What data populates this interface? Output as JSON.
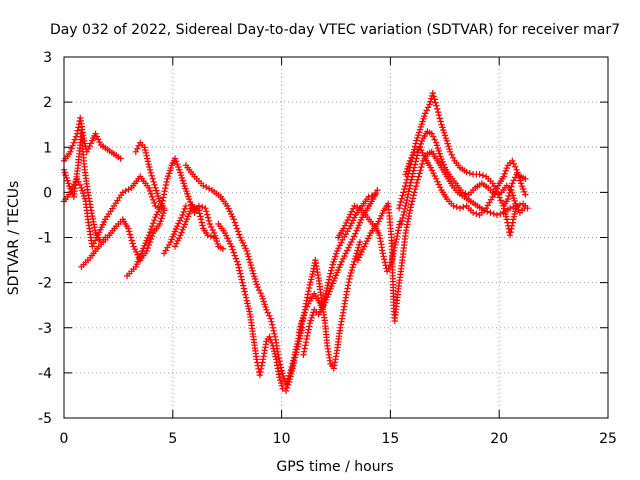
{
  "chart_data": {
    "type": "scatter",
    "title": "Day 032 of 2022, Sidereal Day-to-day VTEC variation (SDTVAR) for receiver mar7",
    "xlabel": "GPS time / hours",
    "ylabel": "SDTVAR / TECUs",
    "xlim": [
      0,
      25
    ],
    "ylim": [
      -5,
      3
    ],
    "xticks": [
      0,
      5,
      10,
      15,
      20,
      25
    ],
    "yticks": [
      -5,
      -4,
      -3,
      -2,
      -1,
      0,
      1,
      2,
      3
    ],
    "xtick_labels": [
      "0",
      "5",
      "10",
      "15",
      "20",
      "25"
    ],
    "ytick_labels": [
      "-5",
      "-4",
      "-3",
      "-2",
      "-1",
      "0",
      "1",
      "2",
      "3"
    ],
    "grid": true,
    "marker": "+",
    "color": "#ff0000",
    "series_traces": [
      [
        [
          0.0,
          0.7
        ],
        [
          0.3,
          0.9
        ],
        [
          0.6,
          1.3
        ],
        [
          0.75,
          1.65
        ],
        [
          0.9,
          1.2
        ],
        [
          1.05,
          0.9
        ],
        [
          1.3,
          1.15
        ],
        [
          1.45,
          1.3
        ],
        [
          1.7,
          1.05
        ],
        [
          2.0,
          0.95
        ],
        [
          2.3,
          0.85
        ],
        [
          2.6,
          0.75
        ]
      ],
      [
        [
          0.0,
          0.5
        ],
        [
          0.2,
          0.2
        ],
        [
          0.45,
          -0.1
        ],
        [
          0.65,
          0.6
        ],
        [
          0.8,
          1.3
        ],
        [
          0.95,
          0.5
        ],
        [
          1.1,
          0.0
        ],
        [
          1.25,
          -0.4
        ],
        [
          1.45,
          -0.9
        ],
        [
          1.7,
          -1.1
        ],
        [
          1.9,
          -1.0
        ]
      ],
      [
        [
          0.0,
          -0.2
        ],
        [
          0.3,
          0.0
        ],
        [
          0.6,
          0.3
        ],
        [
          0.8,
          0.1
        ],
        [
          1.0,
          -0.2
        ],
        [
          1.1,
          -0.6
        ],
        [
          1.3,
          -1.2
        ],
        [
          1.5,
          -1.0
        ],
        [
          1.9,
          -0.6
        ],
        [
          2.3,
          -0.3
        ],
        [
          2.7,
          0.0
        ],
        [
          3.1,
          0.1
        ],
        [
          3.5,
          0.35
        ],
        [
          3.9,
          0.1
        ],
        [
          4.2,
          -0.3
        ],
        [
          4.6,
          -0.4
        ]
      ],
      [
        [
          0.8,
          -1.65
        ],
        [
          1.2,
          -1.45
        ],
        [
          1.6,
          -1.2
        ],
        [
          2.0,
          -1.0
        ],
        [
          2.4,
          -0.75
        ],
        [
          2.7,
          -0.6
        ],
        [
          2.95,
          -0.8
        ],
        [
          3.2,
          -1.2
        ],
        [
          3.5,
          -1.5
        ],
        [
          3.8,
          -1.3
        ],
        [
          4.1,
          -0.9
        ],
        [
          4.4,
          -0.7
        ],
        [
          4.6,
          -0.4
        ]
      ],
      [
        [
          2.9,
          -1.85
        ],
        [
          3.3,
          -1.65
        ],
        [
          3.6,
          -1.3
        ],
        [
          3.9,
          -0.95
        ],
        [
          4.2,
          -0.55
        ],
        [
          4.5,
          -0.25
        ],
        [
          4.75,
          0.3
        ],
        [
          4.95,
          0.6
        ],
        [
          5.1,
          0.75
        ],
        [
          5.3,
          0.5
        ],
        [
          5.5,
          0.2
        ],
        [
          5.75,
          -0.15
        ],
        [
          6.0,
          -0.45
        ],
        [
          6.2,
          -0.3
        ],
        [
          6.5,
          -0.35
        ],
        [
          6.7,
          -0.7
        ],
        [
          6.9,
          -0.9
        ],
        [
          7.1,
          -1.2
        ],
        [
          7.3,
          -1.25
        ]
      ],
      [
        [
          3.3,
          0.9
        ],
        [
          3.5,
          1.1
        ],
        [
          3.7,
          1.0
        ],
        [
          3.95,
          0.5
        ],
        [
          4.2,
          0.1
        ],
        [
          4.4,
          -0.2
        ],
        [
          4.6,
          -0.35
        ]
      ],
      [
        [
          4.6,
          -1.35
        ],
        [
          4.9,
          -1.1
        ],
        [
          5.2,
          -0.75
        ],
        [
          5.45,
          -0.5
        ],
        [
          5.6,
          -0.3
        ]
      ],
      [
        [
          5.1,
          -1.2
        ],
        [
          5.35,
          -0.95
        ],
        [
          5.6,
          -0.65
        ],
        [
          5.9,
          -0.3
        ],
        [
          6.2,
          -0.4
        ],
        [
          6.4,
          -0.8
        ],
        [
          6.6,
          -0.95
        ],
        [
          6.9,
          -1.0
        ]
      ],
      [
        [
          5.6,
          0.6
        ],
        [
          6.0,
          0.35
        ],
        [
          6.4,
          0.15
        ],
        [
          6.8,
          0.05
        ],
        [
          7.2,
          -0.1
        ],
        [
          7.5,
          -0.3
        ],
        [
          7.8,
          -0.6
        ],
        [
          8.1,
          -1.0
        ],
        [
          8.4,
          -1.3
        ],
        [
          8.7,
          -1.8
        ],
        [
          8.9,
          -2.1
        ],
        [
          9.1,
          -2.3
        ],
        [
          9.3,
          -2.6
        ],
        [
          9.5,
          -2.8
        ],
        [
          9.7,
          -3.2
        ],
        [
          9.85,
          -3.6
        ],
        [
          10.0,
          -3.95
        ],
        [
          10.2,
          -4.25
        ],
        [
          10.4,
          -4.0
        ],
        [
          10.6,
          -3.6
        ],
        [
          10.75,
          -3.3
        ],
        [
          10.9,
          -2.9
        ],
        [
          11.1,
          -2.6
        ],
        [
          11.3,
          -2.4
        ],
        [
          11.5,
          -2.25
        ],
        [
          11.7,
          -2.4
        ],
        [
          11.85,
          -2.55
        ],
        [
          12.0,
          -2.3
        ],
        [
          12.15,
          -2.0
        ],
        [
          12.35,
          -1.6
        ],
        [
          12.55,
          -1.3
        ],
        [
          12.8,
          -1.05
        ],
        [
          13.1,
          -0.8
        ],
        [
          13.4,
          -0.5
        ],
        [
          13.7,
          -0.3
        ],
        [
          14.0,
          -0.1
        ],
        [
          14.3,
          -0.05
        ]
      ],
      [
        [
          7.1,
          -0.7
        ],
        [
          7.4,
          -0.9
        ],
        [
          7.7,
          -1.2
        ],
        [
          8.0,
          -1.6
        ],
        [
          8.2,
          -2.0
        ],
        [
          8.4,
          -2.4
        ],
        [
          8.55,
          -2.7
        ],
        [
          8.7,
          -3.2
        ],
        [
          8.85,
          -3.7
        ],
        [
          9.0,
          -4.05
        ],
        [
          9.15,
          -3.7
        ],
        [
          9.3,
          -3.3
        ],
        [
          9.45,
          -3.2
        ],
        [
          9.6,
          -3.4
        ],
        [
          9.75,
          -3.7
        ],
        [
          9.9,
          -4.1
        ],
        [
          10.05,
          -4.35
        ],
        [
          10.2,
          -4.4
        ],
        [
          10.35,
          -4.2
        ],
        [
          10.5,
          -3.9
        ],
        [
          10.65,
          -3.6
        ],
        [
          10.8,
          -3.3
        ],
        [
          10.95,
          -3.0
        ]
      ],
      [
        [
          10.8,
          -3.1
        ],
        [
          11.0,
          -2.8
        ],
        [
          11.15,
          -2.4
        ],
        [
          11.3,
          -2.05
        ],
        [
          11.45,
          -1.75
        ],
        [
          11.55,
          -1.5
        ],
        [
          11.7,
          -1.9
        ],
        [
          11.85,
          -2.4
        ],
        [
          12.0,
          -2.9
        ],
        [
          12.1,
          -3.4
        ],
        [
          12.25,
          -3.8
        ],
        [
          12.4,
          -3.9
        ],
        [
          12.55,
          -3.5
        ],
        [
          12.7,
          -3.0
        ],
        [
          12.85,
          -2.6
        ],
        [
          13.0,
          -2.2
        ],
        [
          13.15,
          -1.85
        ],
        [
          13.3,
          -1.6
        ],
        [
          13.45,
          -1.35
        ],
        [
          13.6,
          -1.1
        ]
      ],
      [
        [
          11.0,
          -3.6
        ],
        [
          11.15,
          -3.25
        ],
        [
          11.3,
          -2.9
        ],
        [
          11.5,
          -2.6
        ],
        [
          11.7,
          -2.7
        ],
        [
          11.95,
          -2.5
        ],
        [
          12.2,
          -2.2
        ],
        [
          12.45,
          -1.9
        ],
        [
          12.7,
          -1.6
        ],
        [
          12.95,
          -1.35
        ],
        [
          13.2,
          -1.1
        ],
        [
          13.45,
          -0.85
        ],
        [
          13.7,
          -0.55
        ],
        [
          13.95,
          -0.35
        ],
        [
          14.2,
          -0.15
        ],
        [
          14.4,
          0.05
        ]
      ],
      [
        [
          12.6,
          -1.0
        ],
        [
          12.85,
          -0.8
        ],
        [
          13.1,
          -0.55
        ],
        [
          13.35,
          -0.3
        ],
        [
          13.6,
          -0.35
        ],
        [
          13.85,
          -0.5
        ],
        [
          14.1,
          -0.65
        ],
        [
          14.35,
          -0.8
        ],
        [
          14.5,
          -0.95
        ],
        [
          14.65,
          -1.35
        ],
        [
          14.85,
          -1.75
        ],
        [
          15.05,
          -1.55
        ],
        [
          15.25,
          -1.1
        ],
        [
          15.45,
          -0.65
        ]
      ],
      [
        [
          13.5,
          -1.5
        ],
        [
          13.8,
          -1.2
        ],
        [
          14.1,
          -0.9
        ],
        [
          14.4,
          -0.7
        ],
        [
          14.7,
          -0.4
        ],
        [
          14.9,
          -0.25
        ],
        [
          15.05,
          -1.0
        ],
        [
          15.15,
          -2.5
        ],
        [
          15.2,
          -2.85
        ],
        [
          15.35,
          -2.2
        ],
        [
          15.55,
          -1.5
        ],
        [
          15.7,
          -0.9
        ],
        [
          15.9,
          -0.4
        ],
        [
          16.1,
          0.0
        ],
        [
          16.3,
          0.35
        ],
        [
          16.5,
          0.7
        ],
        [
          16.7,
          0.85
        ],
        [
          16.9,
          0.9
        ],
        [
          17.1,
          0.75
        ],
        [
          17.35,
          0.55
        ],
        [
          17.6,
          0.35
        ],
        [
          17.85,
          0.15
        ],
        [
          18.1,
          0.0
        ],
        [
          18.4,
          -0.1
        ],
        [
          18.7,
          -0.2
        ],
        [
          19.0,
          -0.3
        ],
        [
          19.3,
          -0.4
        ],
        [
          19.6,
          -0.45
        ],
        [
          19.9,
          -0.5
        ],
        [
          20.2,
          -0.45
        ],
        [
          20.5,
          -0.35
        ],
        [
          20.8,
          -0.3
        ],
        [
          21.1,
          -0.25
        ],
        [
          21.3,
          -0.35
        ]
      ],
      [
        [
          15.4,
          -0.35
        ],
        [
          15.6,
          0.0
        ],
        [
          15.8,
          0.35
        ],
        [
          16.0,
          0.75
        ],
        [
          16.2,
          1.15
        ],
        [
          16.4,
          1.45
        ],
        [
          16.6,
          1.75
        ],
        [
          16.8,
          1.95
        ],
        [
          16.95,
          2.2
        ],
        [
          17.15,
          1.85
        ],
        [
          17.35,
          1.5
        ],
        [
          17.55,
          1.2
        ],
        [
          17.75,
          0.9
        ],
        [
          17.95,
          0.7
        ],
        [
          18.2,
          0.55
        ],
        [
          18.5,
          0.45
        ],
        [
          18.8,
          0.4
        ],
        [
          19.1,
          0.4
        ],
        [
          19.4,
          0.35
        ],
        [
          19.7,
          0.2
        ],
        [
          19.95,
          -0.05
        ],
        [
          20.2,
          -0.3
        ],
        [
          20.4,
          -0.15
        ],
        [
          20.6,
          0.2
        ],
        [
          20.8,
          0.4
        ],
        [
          21.0,
          0.35
        ],
        [
          21.2,
          0.3
        ]
      ],
      [
        [
          15.5,
          -0.7
        ],
        [
          15.7,
          -0.3
        ],
        [
          15.9,
          0.15
        ],
        [
          16.1,
          0.55
        ],
        [
          16.3,
          0.95
        ],
        [
          16.5,
          1.2
        ],
        [
          16.7,
          1.35
        ],
        [
          16.9,
          1.3
        ],
        [
          17.1,
          1.1
        ],
        [
          17.3,
          0.8
        ],
        [
          17.5,
          0.55
        ],
        [
          17.75,
          0.35
        ],
        [
          18.0,
          0.2
        ],
        [
          18.3,
          0.0
        ],
        [
          18.6,
          -0.05
        ],
        [
          18.9,
          0.1
        ],
        [
          19.2,
          0.2
        ],
        [
          19.5,
          0.1
        ],
        [
          19.8,
          -0.05
        ],
        [
          20.1,
          0.0
        ],
        [
          20.35,
          0.15
        ],
        [
          20.55,
          0.05
        ],
        [
          20.75,
          -0.25
        ],
        [
          20.95,
          -0.45
        ],
        [
          21.15,
          -0.35
        ]
      ],
      [
        [
          15.7,
          0.4
        ],
        [
          15.9,
          0.7
        ],
        [
          16.1,
          0.9
        ],
        [
          16.35,
          1.0
        ],
        [
          16.6,
          0.75
        ],
        [
          16.85,
          0.55
        ],
        [
          17.1,
          0.3
        ],
        [
          17.35,
          0.05
        ],
        [
          17.6,
          -0.15
        ],
        [
          17.9,
          -0.3
        ],
        [
          18.2,
          -0.35
        ],
        [
          18.5,
          -0.3
        ],
        [
          18.8,
          -0.45
        ],
        [
          19.1,
          -0.5
        ],
        [
          19.4,
          -0.35
        ],
        [
          19.7,
          -0.1
        ],
        [
          19.95,
          0.15
        ],
        [
          20.2,
          0.35
        ],
        [
          20.4,
          0.6
        ],
        [
          20.6,
          0.7
        ],
        [
          20.8,
          0.5
        ],
        [
          21.0,
          0.2
        ],
        [
          21.2,
          -0.05
        ]
      ],
      [
        [
          20.2,
          -0.3
        ],
        [
          20.35,
          -0.6
        ],
        [
          20.5,
          -0.95
        ],
        [
          20.65,
          -0.6
        ],
        [
          20.8,
          -0.3
        ]
      ]
    ]
  }
}
